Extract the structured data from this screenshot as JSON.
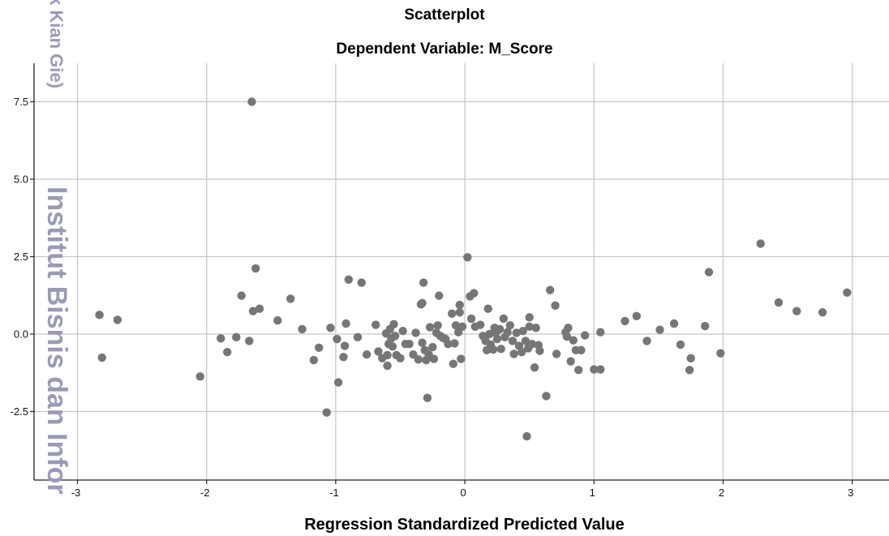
{
  "watermark": {
    "line1": "k Kian Gie)",
    "line2": "Institut Bisnis dan Infor"
  },
  "chart_data": {
    "type": "scatter",
    "title": "Scatterplot",
    "subtitle": "Dependent Variable: M_Score",
    "xlabel": "Regression Standardized Predicted Value",
    "ylabel": "",
    "xlim": [
      -3.15,
      3.3
    ],
    "ylim": [
      -4.75,
      8.75
    ],
    "xticks": [
      -3,
      -2,
      -1,
      0,
      1,
      2,
      3
    ],
    "yticks": [
      -2.5,
      0.0,
      2.5,
      5.0,
      7.5
    ],
    "xtick_labels": [
      "-3",
      "-2",
      "-1",
      "0",
      "1",
      "2",
      "3"
    ],
    "ytick_labels": [
      "-2.5",
      "0.0",
      "2.5",
      "5.0",
      "7.5"
    ],
    "grid": true,
    "marker_color": "#767676",
    "grid_color": "#c8c8c8",
    "points": [
      [
        -2.83,
        0.62
      ],
      [
        -2.81,
        -0.76
      ],
      [
        -2.69,
        0.46
      ],
      [
        -2.05,
        -1.37
      ],
      [
        -1.89,
        -0.14
      ],
      [
        -1.84,
        -0.58
      ],
      [
        -1.77,
        -0.1
      ],
      [
        -1.73,
        1.24
      ],
      [
        -1.67,
        -0.22
      ],
      [
        -1.65,
        7.5
      ],
      [
        -1.64,
        0.74
      ],
      [
        -1.62,
        2.12
      ],
      [
        -1.59,
        0.82
      ],
      [
        -1.45,
        0.44
      ],
      [
        -1.35,
        1.14
      ],
      [
        -1.26,
        0.16
      ],
      [
        -1.17,
        -0.84
      ],
      [
        -1.13,
        -0.44
      ],
      [
        -1.07,
        -2.53
      ],
      [
        -1.04,
        0.2
      ],
      [
        -0.99,
        -0.16
      ],
      [
        -0.98,
        -1.56
      ],
      [
        -0.94,
        -0.74
      ],
      [
        -0.93,
        -0.38
      ],
      [
        -0.92,
        0.34
      ],
      [
        -0.9,
        1.76
      ],
      [
        -0.83,
        -0.1
      ],
      [
        -0.8,
        1.66
      ],
      [
        -0.76,
        -0.66
      ],
      [
        -0.69,
        0.3
      ],
      [
        -0.67,
        -0.56
      ],
      [
        -0.64,
        -0.78
      ],
      [
        -0.61,
        0.02
      ],
      [
        -0.6,
        -0.68
      ],
      [
        -0.6,
        -1.02
      ],
      [
        -0.59,
        -0.32
      ],
      [
        -0.58,
        0.16
      ],
      [
        -0.57,
        -0.14
      ],
      [
        -0.56,
        -0.4
      ],
      [
        -0.55,
        0.32
      ],
      [
        -0.54,
        -0.06
      ],
      [
        -0.53,
        -0.68
      ],
      [
        -0.5,
        -0.78
      ],
      [
        -0.48,
        0.1
      ],
      [
        -0.46,
        -0.32
      ],
      [
        -0.43,
        -0.32
      ],
      [
        -0.4,
        -0.66
      ],
      [
        -0.38,
        0.04
      ],
      [
        -0.36,
        -0.82
      ],
      [
        -0.34,
        0.96
      ],
      [
        -0.33,
        -0.28
      ],
      [
        -0.33,
        1.0
      ],
      [
        -0.32,
        1.66
      ],
      [
        -0.31,
        -0.52
      ],
      [
        -0.3,
        -0.84
      ],
      [
        -0.29,
        -2.06
      ],
      [
        -0.28,
        -0.66
      ],
      [
        -0.27,
        0.22
      ],
      [
        -0.25,
        -0.42
      ],
      [
        -0.24,
        -0.8
      ],
      [
        -0.22,
        0.04
      ],
      [
        -0.21,
        0.28
      ],
      [
        -0.2,
        1.24
      ],
      [
        -0.19,
        -0.06
      ],
      [
        -0.17,
        -0.12
      ],
      [
        -0.15,
        -0.16
      ],
      [
        -0.13,
        -0.32
      ],
      [
        -0.1,
        0.66
      ],
      [
        -0.09,
        -0.96
      ],
      [
        -0.08,
        -0.3
      ],
      [
        -0.07,
        0.28
      ],
      [
        -0.05,
        0.06
      ],
      [
        -0.04,
        0.94
      ],
      [
        -0.04,
        0.7
      ],
      [
        -0.03,
        -0.8
      ],
      [
        -0.02,
        0.24
      ],
      [
        0.02,
        2.48
      ],
      [
        0.04,
        1.22
      ],
      [
        0.05,
        0.5
      ],
      [
        0.07,
        1.32
      ],
      [
        0.08,
        0.24
      ],
      [
        0.12,
        0.3
      ],
      [
        0.14,
        -0.06
      ],
      [
        0.16,
        -0.22
      ],
      [
        0.17,
        -0.52
      ],
      [
        0.18,
        0.82
      ],
      [
        0.19,
        0.0
      ],
      [
        0.2,
        -0.34
      ],
      [
        0.22,
        -0.5
      ],
      [
        0.23,
        0.2
      ],
      [
        0.24,
        0.04
      ],
      [
        0.25,
        -0.16
      ],
      [
        0.27,
        0.16
      ],
      [
        0.28,
        -0.48
      ],
      [
        0.3,
        0.5
      ],
      [
        0.31,
        -0.1
      ],
      [
        0.33,
        0.06
      ],
      [
        0.35,
        0.28
      ],
      [
        0.37,
        -0.22
      ],
      [
        0.38,
        -0.64
      ],
      [
        0.4,
        0.04
      ],
      [
        0.42,
        -0.38
      ],
      [
        0.44,
        -0.58
      ],
      [
        0.45,
        0.1
      ],
      [
        0.47,
        -0.22
      ],
      [
        0.48,
        -3.3
      ],
      [
        0.49,
        -0.46
      ],
      [
        0.5,
        0.24
      ],
      [
        0.5,
        0.54
      ],
      [
        0.52,
        -0.32
      ],
      [
        0.54,
        -1.08
      ],
      [
        0.55,
        0.2
      ],
      [
        0.57,
        -0.36
      ],
      [
        0.58,
        -0.54
      ],
      [
        0.63,
        -2.0
      ],
      [
        0.66,
        1.42
      ],
      [
        0.7,
        0.92
      ],
      [
        0.71,
        -0.64
      ],
      [
        0.78,
        0.06
      ],
      [
        0.79,
        -0.08
      ],
      [
        0.8,
        0.2
      ],
      [
        0.82,
        -0.88
      ],
      [
        0.84,
        -0.2
      ],
      [
        0.86,
        -0.52
      ],
      [
        0.88,
        -1.16
      ],
      [
        0.9,
        -0.52
      ],
      [
        0.93,
        -0.04
      ],
      [
        1.0,
        -1.14
      ],
      [
        1.05,
        0.06
      ],
      [
        1.05,
        -1.14
      ],
      [
        1.24,
        0.42
      ],
      [
        1.33,
        0.58
      ],
      [
        1.41,
        -0.22
      ],
      [
        1.51,
        0.14
      ],
      [
        1.62,
        0.34
      ],
      [
        1.67,
        -0.34
      ],
      [
        1.74,
        -1.16
      ],
      [
        1.75,
        -0.78
      ],
      [
        1.86,
        0.26
      ],
      [
        1.89,
        2.0
      ],
      [
        1.98,
        -0.62
      ],
      [
        2.29,
        2.92
      ],
      [
        2.43,
        1.02
      ],
      [
        2.57,
        0.74
      ],
      [
        2.77,
        0.7
      ],
      [
        2.96,
        1.34
      ]
    ]
  }
}
